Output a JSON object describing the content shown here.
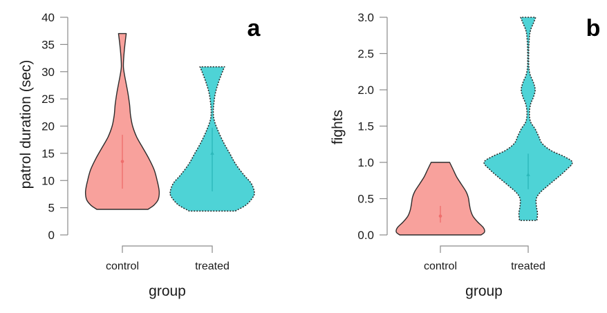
{
  "chart_data": [
    {
      "type": "violin",
      "panel_label": "a",
      "title": "",
      "xlabel": "group",
      "ylabel": "patrol duration (sec)",
      "ylim": [
        0,
        40
      ],
      "yticks": [
        0,
        5,
        10,
        15,
        20,
        25,
        30,
        35,
        40
      ],
      "ytick_labels": [
        "0",
        "5",
        "10",
        "15",
        "20",
        "25",
        "30",
        "35",
        "40"
      ],
      "categories": [
        "control",
        "treated"
      ],
      "grid": false,
      "series": [
        {
          "name": "control",
          "color": "#F8A19C",
          "whisker_color": "#EE6E6C",
          "outline": "solid",
          "range": [
            4.7,
            37.0
          ],
          "mean": 13.5,
          "interval": [
            8.5,
            18.4
          ],
          "density_profile": [
            [
              4.7,
              0.5
            ],
            [
              5.5,
              0.62
            ],
            [
              6.5,
              0.7
            ],
            [
              8.0,
              0.72
            ],
            [
              10.0,
              0.68
            ],
            [
              12.0,
              0.62
            ],
            [
              14.0,
              0.52
            ],
            [
              16.0,
              0.4
            ],
            [
              18.0,
              0.28
            ],
            [
              20.0,
              0.2
            ],
            [
              22.0,
              0.16
            ],
            [
              24.0,
              0.14
            ],
            [
              26.0,
              0.11
            ],
            [
              28.0,
              0.07
            ],
            [
              29.5,
              0.04
            ],
            [
              31.0,
              0.02
            ],
            [
              33.0,
              0.03
            ],
            [
              35.0,
              0.05
            ],
            [
              37.0,
              0.075
            ]
          ]
        },
        {
          "name": "treated",
          "color": "#4ED3D6",
          "whisker_color": "#2CB8BA",
          "outline": "dotted",
          "range": [
            4.4,
            30.9
          ],
          "mean": 15.0,
          "interval": [
            8.0,
            19.7
          ],
          "density_profile": [
            [
              4.4,
              0.45
            ],
            [
              5.5,
              0.66
            ],
            [
              7.0,
              0.8
            ],
            [
              8.0,
              0.82
            ],
            [
              9.5,
              0.76
            ],
            [
              11.0,
              0.62
            ],
            [
              13.0,
              0.46
            ],
            [
              15.0,
              0.34
            ],
            [
              17.0,
              0.22
            ],
            [
              19.0,
              0.12
            ],
            [
              21.0,
              0.04
            ],
            [
              22.5,
              0.02
            ],
            [
              24.0,
              0.03
            ],
            [
              26.0,
              0.06
            ],
            [
              28.0,
              0.12
            ],
            [
              30.0,
              0.2
            ],
            [
              30.9,
              0.24
            ]
          ]
        }
      ]
    },
    {
      "type": "violin",
      "panel_label": "b",
      "title": "",
      "xlabel": "group",
      "ylabel": "fights",
      "ylim": [
        0,
        3
      ],
      "yticks": [
        0,
        0.5,
        1.0,
        1.5,
        2.0,
        2.5,
        3.0
      ],
      "ytick_labels": [
        "0.0",
        "0.5",
        "1.0",
        "1.5",
        "2.0",
        "2.5",
        "3.0"
      ],
      "categories": [
        "control",
        "treated"
      ],
      "grid": false,
      "series": [
        {
          "name": "control",
          "color": "#F8A19C",
          "whisker_color": "#EE6E6C",
          "outline": "solid",
          "range": [
            0.0,
            1.0
          ],
          "mean": 0.26,
          "interval": [
            0.17,
            0.4
          ],
          "density_profile": [
            [
              0.0,
              0.7
            ],
            [
              0.04,
              0.76
            ],
            [
              0.1,
              0.74
            ],
            [
              0.18,
              0.64
            ],
            [
              0.26,
              0.56
            ],
            [
              0.34,
              0.52
            ],
            [
              0.42,
              0.5
            ],
            [
              0.52,
              0.48
            ],
            [
              0.6,
              0.44
            ],
            [
              0.7,
              0.36
            ],
            [
              0.8,
              0.28
            ],
            [
              0.9,
              0.22
            ],
            [
              1.0,
              0.16
            ]
          ]
        },
        {
          "name": "treated",
          "color": "#4ED3D6",
          "whisker_color": "#2CB8BA",
          "outline": "dotted",
          "range": [
            0.2,
            3.0
          ],
          "mean": 0.83,
          "interval": [
            0.63,
            1.12
          ],
          "density_profile": [
            [
              0.2,
              0.15
            ],
            [
              0.3,
              0.16
            ],
            [
              0.4,
              0.14
            ],
            [
              0.5,
              0.14
            ],
            [
              0.58,
              0.2
            ],
            [
              0.68,
              0.34
            ],
            [
              0.8,
              0.52
            ],
            [
              0.9,
              0.66
            ],
            [
              1.0,
              0.76
            ],
            [
              1.08,
              0.62
            ],
            [
              1.16,
              0.4
            ],
            [
              1.26,
              0.24
            ],
            [
              1.36,
              0.18
            ],
            [
              1.46,
              0.12
            ],
            [
              1.56,
              0.04
            ],
            [
              1.68,
              0.02
            ],
            [
              1.8,
              0.04
            ],
            [
              1.9,
              0.09
            ],
            [
              2.0,
              0.12
            ],
            [
              2.1,
              0.09
            ],
            [
              2.22,
              0.03
            ],
            [
              2.35,
              0.01
            ],
            [
              2.55,
              0.01
            ],
            [
              2.72,
              0.02
            ],
            [
              2.82,
              0.04
            ],
            [
              2.92,
              0.09
            ],
            [
              3.0,
              0.13
            ]
          ]
        }
      ]
    }
  ]
}
